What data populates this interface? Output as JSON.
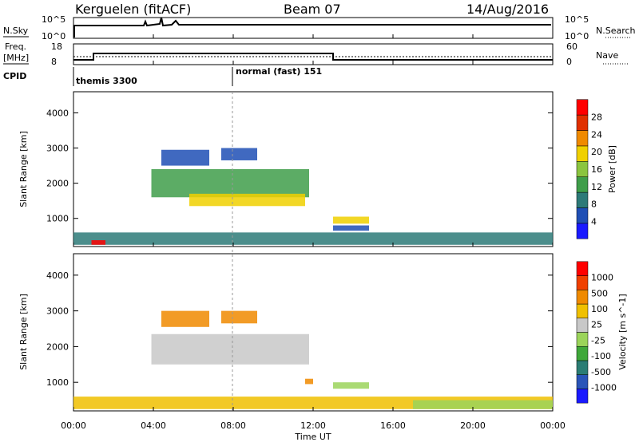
{
  "header": {
    "station": "Kerguelen (fitACF)",
    "beam": "Beam 07",
    "date": "14/Aug/2016"
  },
  "time_axis": {
    "label": "Time UT",
    "ticks": [
      "00:00",
      "04:00",
      "08:00",
      "12:00",
      "16:00",
      "20:00",
      "00:00"
    ]
  },
  "summary_panels": {
    "nsky": {
      "left_label": "N.Sky",
      "left_ticks": [
        "10^5",
        "10^0"
      ],
      "right_label": "N.Search",
      "right_ticks": [
        "10^5",
        "10^0"
      ]
    },
    "freq": {
      "left_label_line1": "Freq.",
      "left_label_line2": "[MHz]",
      "left_ticks": [
        "18",
        "8"
      ],
      "right_label": "Nave",
      "right_ticks": [
        "60",
        "0"
      ]
    },
    "cpid": {
      "label": "CPID",
      "modes": [
        {
          "text": "themis 3300",
          "start_hour": 0,
          "end_hour": 8
        },
        {
          "text": "normal (fast) 151",
          "start_hour": 8,
          "end_hour": 24
        }
      ]
    }
  },
  "colors": {
    "power_scale": [
      "#1a1aff",
      "#1f4fb5",
      "#2d7a78",
      "#3f9e4a",
      "#8bc53f",
      "#f0d000",
      "#f08a00",
      "#e03000",
      "#ff0000"
    ],
    "velocity_scale": [
      "#1a1aff",
      "#2a55b8",
      "#2b7d74",
      "#3fa83a",
      "#9bd45a",
      "#c8c8c8",
      "#f0c000",
      "#f08a00",
      "#f04000",
      "#ff0000"
    ],
    "ground_scatter": "#bdbdbd"
  },
  "chart_data": [
    {
      "type": "heatmap",
      "name": "power",
      "ylabel": "Slant Range [km]",
      "yticks": [
        1000,
        2000,
        3000,
        4000
      ],
      "ylim": [
        200,
        4600
      ],
      "xlim": [
        0,
        24
      ],
      "colorbar": {
        "label": "Power [dB]",
        "ticks": [
          4,
          8,
          12,
          16,
          20,
          24,
          28
        ],
        "range": [
          0,
          32
        ]
      },
      "echo_regions": [
        {
          "t0": 0.0,
          "t1": 24.0,
          "r0": 250,
          "r1": 600,
          "level": 2
        },
        {
          "t0": 0.9,
          "t1": 1.6,
          "r0": 250,
          "r1": 380,
          "level": 8
        },
        {
          "t0": 3.9,
          "t1": 11.8,
          "r0": 1600,
          "r1": 2400,
          "level": 3
        },
        {
          "t0": 5.8,
          "t1": 11.6,
          "r0": 1350,
          "r1": 1700,
          "level": 5
        },
        {
          "t0": 4.4,
          "t1": 6.8,
          "r0": 2500,
          "r1": 2950,
          "level": 1
        },
        {
          "t0": 7.4,
          "t1": 9.2,
          "r0": 2650,
          "r1": 3000,
          "level": 1
        },
        {
          "t0": 13.0,
          "t1": 14.8,
          "r0": 850,
          "r1": 1050,
          "level": 5
        },
        {
          "t0": 13.0,
          "t1": 14.8,
          "r0": 650,
          "r1": 800,
          "level": 1
        }
      ]
    },
    {
      "type": "heatmap",
      "name": "velocity",
      "ylabel": "Slant Range [km]",
      "yticks": [
        1000,
        2000,
        3000,
        4000
      ],
      "ylim": [
        200,
        4600
      ],
      "xlim": [
        0,
        24
      ],
      "colorbar": {
        "label": "Velocity [m s^-1]",
        "ticks": [
          "1000",
          "500",
          "100",
          "25",
          "-25",
          "-100",
          "-500",
          "-1000"
        ]
      },
      "echo_regions": [
        {
          "t0": 0.0,
          "t1": 24.0,
          "r0": 250,
          "r1": 600,
          "level": 6
        },
        {
          "t0": 3.9,
          "t1": 11.8,
          "r0": 1500,
          "r1": 2350,
          "level": 5
        },
        {
          "t0": 4.4,
          "t1": 6.8,
          "r0": 2550,
          "r1": 3000,
          "level": 7
        },
        {
          "t0": 7.4,
          "t1": 9.2,
          "r0": 2650,
          "r1": 3000,
          "level": 7
        },
        {
          "t0": 11.6,
          "t1": 12.0,
          "r0": 950,
          "r1": 1100,
          "level": 7
        },
        {
          "t0": 13.0,
          "t1": 14.8,
          "r0": 820,
          "r1": 1000,
          "level": 4
        },
        {
          "t0": 17.0,
          "t1": 24.0,
          "r0": 250,
          "r1": 500,
          "level": 4
        }
      ]
    }
  ]
}
